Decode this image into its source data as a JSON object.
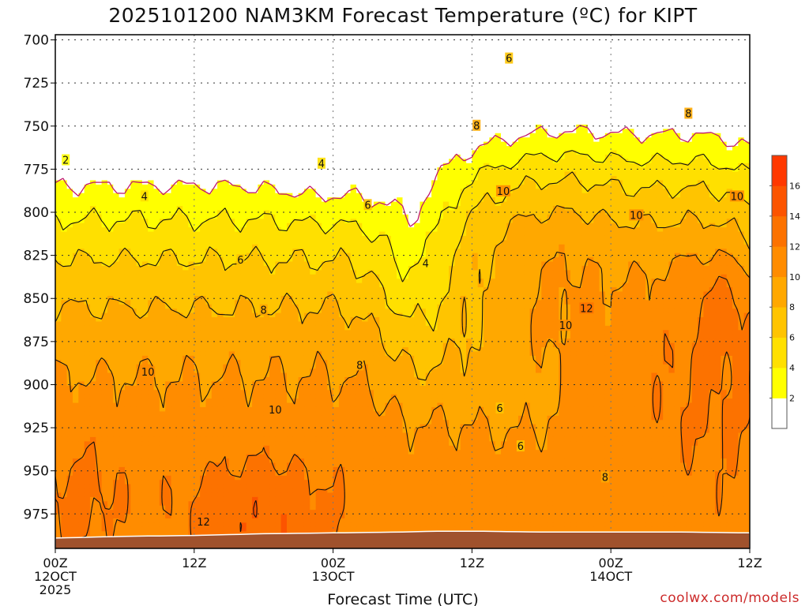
{
  "chart_data": {
    "type": "heatmap",
    "title": "2025101200 NAM3KM Forecast Temperature (ºC) for KIPT",
    "xlabel": "Forecast Time (UTC)",
    "credit": "coolwx.com/models",
    "x_ticks": [
      {
        "h": 0,
        "lines": [
          "00Z",
          "12OCT",
          "2025"
        ]
      },
      {
        "h": 12,
        "lines": [
          "12Z"
        ]
      },
      {
        "h": 24,
        "lines": [
          "00Z",
          "13OCT"
        ]
      },
      {
        "h": 36,
        "lines": [
          "12Z"
        ]
      },
      {
        "h": 48,
        "lines": [
          "00Z",
          "14OCT"
        ]
      },
      {
        "h": 60,
        "lines": [
          "12Z"
        ]
      }
    ],
    "xlim_hours": [
      0,
      60
    ],
    "y_ticks": [
      700,
      725,
      750,
      775,
      800,
      825,
      850,
      875,
      900,
      925,
      950,
      975
    ],
    "ylim_hPa": [
      697,
      995
    ],
    "y_inverted": true,
    "grid": true,
    "colorbar": {
      "placement": "right",
      "levels": [
        2,
        4,
        6,
        8,
        10,
        12,
        14,
        16
      ],
      "colors": [
        "#ffffff",
        "#ffff00",
        "#ffe000",
        "#ffc400",
        "#ffa800",
        "#ff8c00",
        "#fc7200",
        "#fc5400",
        "#ff3800"
      ]
    },
    "contour_labels": [
      {
        "text": "2",
        "h": 0.9,
        "p": 770
      },
      {
        "text": "4",
        "h": 7.7,
        "p": 791
      },
      {
        "text": "4",
        "h": 23.0,
        "p": 772
      },
      {
        "text": "4",
        "h": 32.0,
        "p": 830
      },
      {
        "text": "6",
        "h": 16.0,
        "p": 828
      },
      {
        "text": "6",
        "h": 27.0,
        "p": 796
      },
      {
        "text": "6",
        "h": 39.2,
        "p": 711
      },
      {
        "text": "6",
        "h": 38.4,
        "p": 914
      },
      {
        "text": "6",
        "h": 40.2,
        "p": 936
      },
      {
        "text": "8",
        "h": 18.0,
        "p": 857
      },
      {
        "text": "8",
        "h": 26.3,
        "p": 889
      },
      {
        "text": "8",
        "h": 36.4,
        "p": 750
      },
      {
        "text": "8",
        "h": 54.7,
        "p": 743
      },
      {
        "text": "8",
        "h": 47.5,
        "p": 954
      },
      {
        "text": "10",
        "h": 8.0,
        "p": 893
      },
      {
        "text": "10",
        "h": 19.0,
        "p": 915
      },
      {
        "text": "10",
        "h": 38.7,
        "p": 788
      },
      {
        "text": "10",
        "h": 50.2,
        "p": 802
      },
      {
        "text": "10",
        "h": 44.1,
        "p": 866
      },
      {
        "text": "10",
        "h": 58.9,
        "p": 791
      },
      {
        "text": "12",
        "h": 12.8,
        "p": 980
      },
      {
        "text": "12",
        "h": 45.9,
        "p": 856
      }
    ]
  }
}
